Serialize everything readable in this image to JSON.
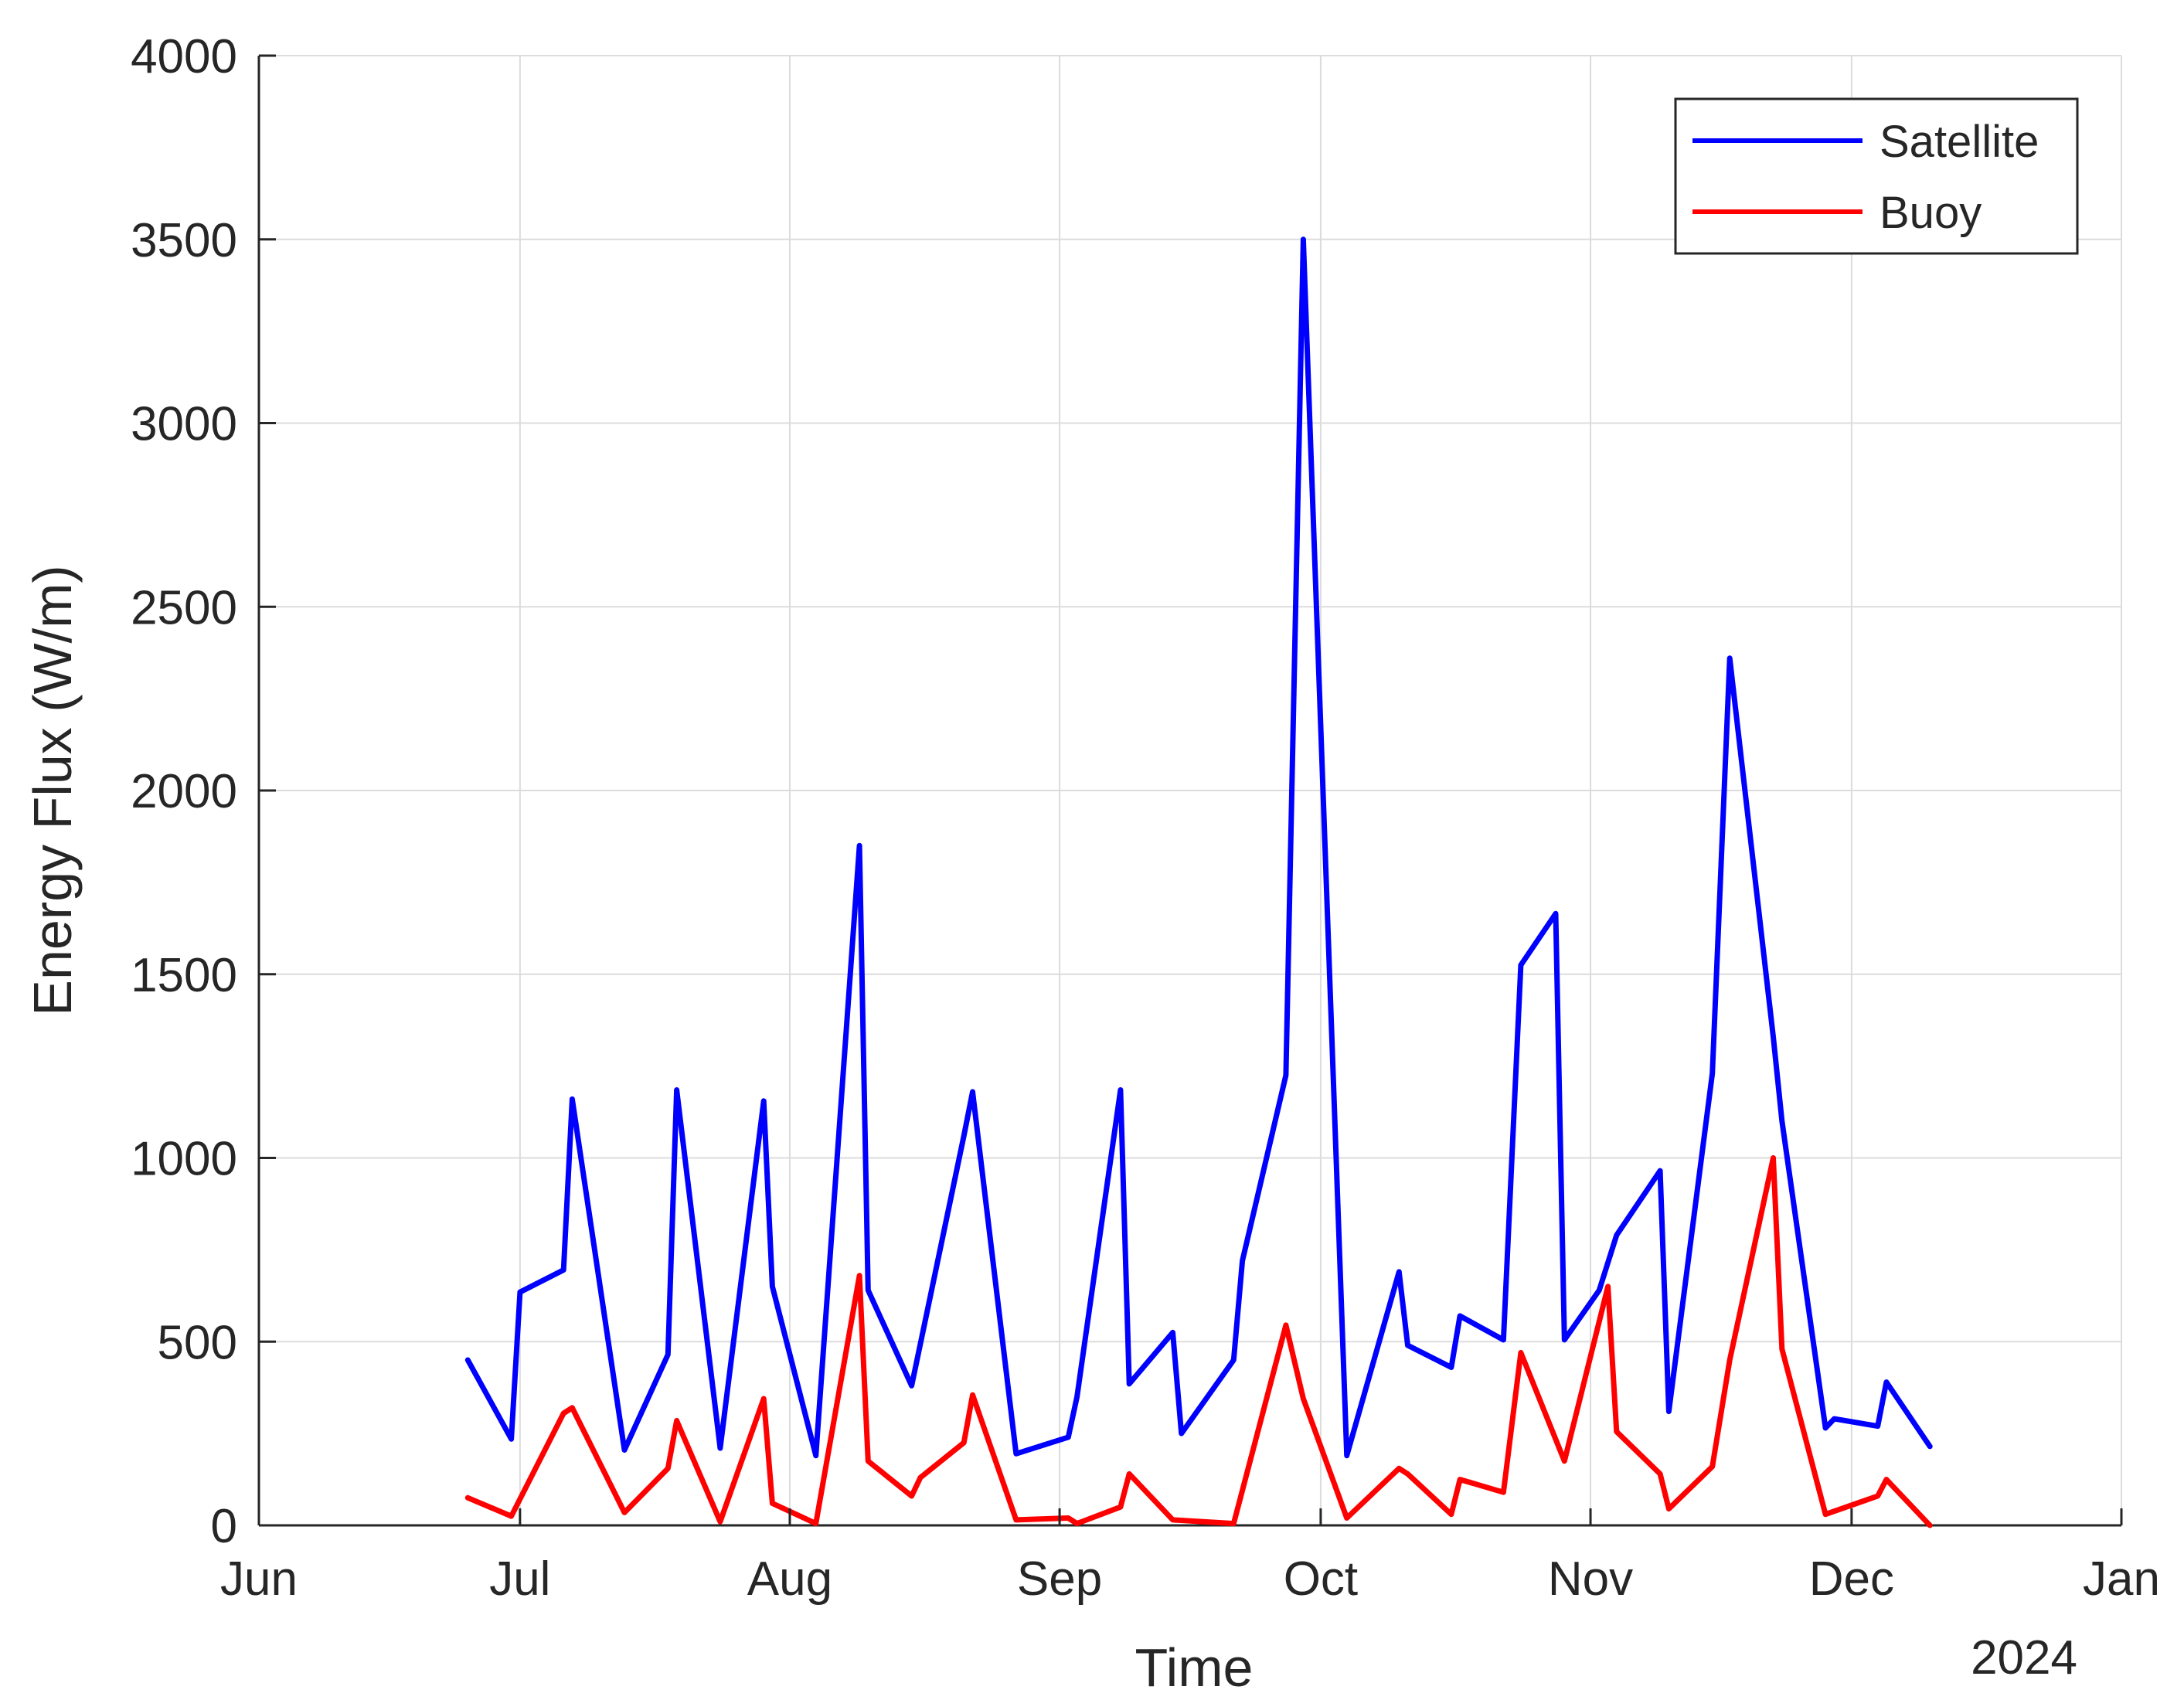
{
  "chart_data": {
    "type": "line",
    "title": "",
    "xlabel": "Time",
    "ylabel": "Energy Flux (W/m)",
    "x_secondary_label": "2024",
    "xlim": [
      "2024-06-01",
      "2025-01-01"
    ],
    "ylim": [
      0,
      4000
    ],
    "x_ticks": [
      {
        "date": "2024-06-01",
        "label": "Jun"
      },
      {
        "date": "2024-07-01",
        "label": "Jul"
      },
      {
        "date": "2024-08-01",
        "label": "Aug"
      },
      {
        "date": "2024-09-01",
        "label": "Sep"
      },
      {
        "date": "2024-10-01",
        "label": "Oct"
      },
      {
        "date": "2024-11-01",
        "label": "Nov"
      },
      {
        "date": "2024-12-01",
        "label": "Dec"
      },
      {
        "date": "2025-01-01",
        "label": "Jan"
      }
    ],
    "y_ticks": [
      0,
      500,
      1000,
      1500,
      2000,
      2500,
      3000,
      3500,
      4000
    ],
    "y_tick_labels": [
      "0",
      "500",
      "1000",
      "1500",
      "2000",
      "2500",
      "3000",
      "3500",
      "4000"
    ],
    "grid": true,
    "legend_position": "top-right",
    "series": [
      {
        "name": "Satellite",
        "color": "#0000ff",
        "points": [
          [
            "2024-06-25",
            450
          ],
          [
            "2024-06-30",
            235
          ],
          [
            "2024-07-01",
            635
          ],
          [
            "2024-07-06",
            695
          ],
          [
            "2024-07-07",
            1160
          ],
          [
            "2024-07-13",
            205
          ],
          [
            "2024-07-18",
            465
          ],
          [
            "2024-07-19",
            1185
          ],
          [
            "2024-07-24",
            210
          ],
          [
            "2024-07-29",
            1155
          ],
          [
            "2024-07-30",
            650
          ],
          [
            "2024-08-04",
            190
          ],
          [
            "2024-08-09",
            1850
          ],
          [
            "2024-08-10",
            640
          ],
          [
            "2024-08-15",
            380
          ],
          [
            "2024-08-21",
            1060
          ],
          [
            "2024-08-22",
            1180
          ],
          [
            "2024-08-27",
            195
          ],
          [
            "2024-09-02",
            240
          ],
          [
            "2024-09-03",
            350
          ],
          [
            "2024-09-08",
            1185
          ],
          [
            "2024-09-09",
            385
          ],
          [
            "2024-09-14",
            525
          ],
          [
            "2024-09-15",
            250
          ],
          [
            "2024-09-21",
            450
          ],
          [
            "2024-09-22",
            720
          ],
          [
            "2024-09-27",
            1225
          ],
          [
            "2024-09-29",
            3500
          ],
          [
            "2024-10-04",
            190
          ],
          [
            "2024-10-10",
            690
          ],
          [
            "2024-10-11",
            490
          ],
          [
            "2024-10-16",
            430
          ],
          [
            "2024-10-17",
            570
          ],
          [
            "2024-10-22",
            505
          ],
          [
            "2024-10-24",
            1525
          ],
          [
            "2024-10-28",
            1665
          ],
          [
            "2024-10-29",
            505
          ],
          [
            "2024-11-02",
            640
          ],
          [
            "2024-11-04",
            790
          ],
          [
            "2024-11-09",
            965
          ],
          [
            "2024-11-10",
            310
          ],
          [
            "2024-11-15",
            1230
          ],
          [
            "2024-11-17",
            2360
          ],
          [
            "2024-11-22",
            1330
          ],
          [
            "2024-11-23",
            1100
          ],
          [
            "2024-11-28",
            265
          ],
          [
            "2024-11-29",
            290
          ],
          [
            "2024-12-04",
            270
          ],
          [
            "2024-12-05",
            390
          ],
          [
            "2024-12-10",
            215
          ]
        ]
      },
      {
        "name": "Buoy",
        "color": "#ff0000",
        "points": [
          [
            "2024-06-25",
            75
          ],
          [
            "2024-06-30",
            25
          ],
          [
            "2024-07-06",
            305
          ],
          [
            "2024-07-07",
            320
          ],
          [
            "2024-07-13",
            35
          ],
          [
            "2024-07-18",
            155
          ],
          [
            "2024-07-19",
            285
          ],
          [
            "2024-07-24",
            10
          ],
          [
            "2024-07-29",
            345
          ],
          [
            "2024-07-30",
            60
          ],
          [
            "2024-08-04",
            5
          ],
          [
            "2024-08-09",
            680
          ],
          [
            "2024-08-10",
            175
          ],
          [
            "2024-08-15",
            80
          ],
          [
            "2024-08-16",
            130
          ],
          [
            "2024-08-21",
            225
          ],
          [
            "2024-08-22",
            355
          ],
          [
            "2024-08-27",
            15
          ],
          [
            "2024-09-02",
            20
          ],
          [
            "2024-09-03",
            5
          ],
          [
            "2024-09-08",
            50
          ],
          [
            "2024-09-09",
            140
          ],
          [
            "2024-09-14",
            15
          ],
          [
            "2024-09-21",
            5
          ],
          [
            "2024-09-27",
            545
          ],
          [
            "2024-09-29",
            345
          ],
          [
            "2024-10-04",
            20
          ],
          [
            "2024-10-10",
            155
          ],
          [
            "2024-10-11",
            140
          ],
          [
            "2024-10-16",
            30
          ],
          [
            "2024-10-17",
            125
          ],
          [
            "2024-10-22",
            90
          ],
          [
            "2024-10-24",
            470
          ],
          [
            "2024-10-29",
            175
          ],
          [
            "2024-11-03",
            650
          ],
          [
            "2024-11-04",
            255
          ],
          [
            "2024-11-09",
            140
          ],
          [
            "2024-11-10",
            45
          ],
          [
            "2024-11-15",
            160
          ],
          [
            "2024-11-17",
            450
          ],
          [
            "2024-11-22",
            1000
          ],
          [
            "2024-11-23",
            480
          ],
          [
            "2024-11-28",
            30
          ],
          [
            "2024-12-04",
            80
          ],
          [
            "2024-12-05",
            125
          ],
          [
            "2024-12-10",
            0
          ]
        ]
      }
    ]
  }
}
